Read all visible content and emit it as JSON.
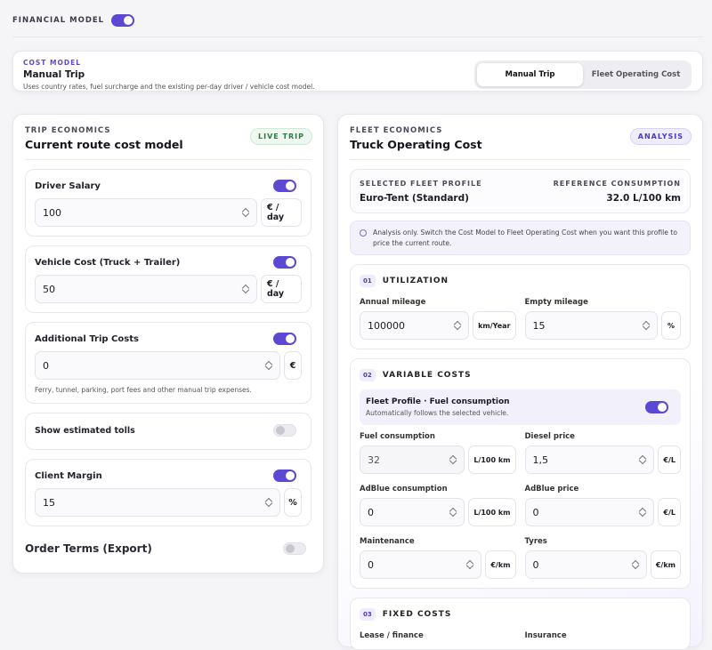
{
  "header": {
    "title": "FINANCIAL MODEL",
    "toggle_on": true
  },
  "cost_model": {
    "label": "COST MODEL",
    "title": "Manual Trip",
    "description": "Uses country rates, fuel surcharge and the existing per-day driver / vehicle cost model.",
    "tabs": [
      "Manual Trip",
      "Fleet Operating Cost"
    ],
    "selected_tab": 0
  },
  "trip_economics": {
    "label": "TRIP ECONOMICS",
    "title": "Current route cost model",
    "badge": "LIVE TRIP",
    "fields": [
      {
        "label": "Driver Salary",
        "toggle_on": true,
        "value": "100",
        "unit": "€ / day"
      },
      {
        "label": "Vehicle Cost (Truck + Trailer)",
        "toggle_on": true,
        "value": "50",
        "unit": "€ / day"
      },
      {
        "label": "Additional Trip Costs",
        "toggle_on": true,
        "value": "0",
        "unit": "€",
        "note": "Ferry, tunnel, parking, port fees and other manual trip expenses."
      },
      {
        "label": "Show estimated tolls",
        "toggle_on": false
      },
      {
        "label": "Client Margin",
        "toggle_on": true,
        "value": "15",
        "unit": "%"
      }
    ],
    "order_terms": {
      "label": "Order Terms (Export)",
      "toggle_on": false
    }
  },
  "fleet_economics": {
    "label": "FLEET ECONOMICS",
    "title": "Truck Operating Cost",
    "badge": "ANALYSIS",
    "profile": {
      "label": "SELECTED FLEET PROFILE",
      "value": "Euro-Tent (Standard)"
    },
    "consumption": {
      "label": "REFERENCE CONSUMPTION",
      "value": "32.0 L/100 km"
    },
    "info": "Analysis only. Switch the Cost Model to Fleet Operating Cost when you want this profile to price the current route.",
    "sections": [
      {
        "number": "01",
        "title": "UTILIZATION",
        "fields": [
          {
            "label": "Annual mileage",
            "value": "100000",
            "unit": "km/Year"
          },
          {
            "label": "Empty mileage",
            "value": "15",
            "unit": "%"
          }
        ]
      },
      {
        "number": "02",
        "title": "VARIABLE COSTS",
        "profile_box": {
          "title": "Fleet Profile · Fuel consumption",
          "subtitle": "Automatically follows the selected vehicle.",
          "toggle_on": true
        },
        "fields": [
          {
            "label": "Fuel consumption",
            "value": "32",
            "unit": "L/100 km",
            "disabled": true
          },
          {
            "label": "Diesel price",
            "value": "1,5",
            "unit": "€/L"
          },
          {
            "label": "AdBlue consumption",
            "value": "0",
            "unit": "L/100 km"
          },
          {
            "label": "AdBlue price",
            "value": "0",
            "unit": "€/L"
          },
          {
            "label": "Maintenance",
            "value": "0",
            "unit": "€/km"
          },
          {
            "label": "Tyres",
            "value": "0",
            "unit": "€/km"
          }
        ]
      },
      {
        "number": "03",
        "title": "FIXED COSTS",
        "fields": [
          {
            "label": "Lease / finance"
          },
          {
            "label": "Insurance"
          }
        ]
      }
    ]
  }
}
